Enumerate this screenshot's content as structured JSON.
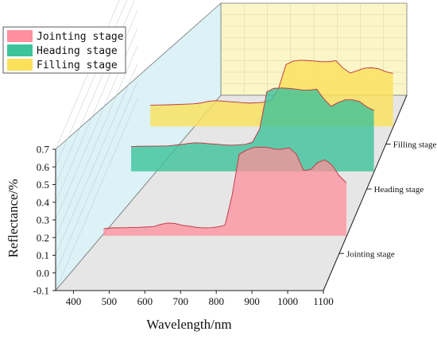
{
  "colors": {
    "jointing": "#ff8f9c",
    "heading": "#3cc39a",
    "filling": "#fbe15a",
    "line": "#c0303f",
    "back_wall": "#fbf6c8",
    "side_wall": "#d6f0f4",
    "floor": "#e6e6e6"
  },
  "chart_data": {
    "type": "area",
    "xlabel": "Wavelength/nm",
    "ylabel": "Reflectance/%",
    "xlim": [
      350,
      1100
    ],
    "ylim": [
      -0.1,
      0.7
    ],
    "x_ticks": [
      "400",
      "500",
      "600",
      "700",
      "800",
      "900",
      "1000",
      "1100"
    ],
    "y_ticks": [
      "-0.1",
      "0.0",
      "0.1",
      "0.2",
      "0.3",
      "0.4",
      "0.5",
      "0.6",
      "0.7"
    ],
    "legend_position": "top-left",
    "series": [
      {
        "name": "Jointing stage",
        "color_key": "jointing",
        "x": [
          440,
          460,
          500,
          540,
          560,
          580,
          600,
          620,
          640,
          660,
          680,
          700,
          720,
          740,
          760,
          780,
          800,
          820,
          840,
          860,
          880,
          900,
          920,
          940,
          960,
          980,
          1000,
          1020,
          1040,
          1060,
          1080,
          1100,
          1120
        ],
        "y": [
          0.04,
          0.045,
          0.046,
          0.048,
          0.05,
          0.052,
          0.065,
          0.072,
          0.07,
          0.06,
          0.055,
          0.048,
          0.045,
          0.046,
          0.051,
          0.06,
          0.23,
          0.462,
          0.485,
          0.5,
          0.502,
          0.5,
          0.49,
          0.49,
          0.498,
          0.462,
          0.37,
          0.375,
          0.415,
          0.43,
          0.4,
          0.34,
          0.3
        ]
      },
      {
        "name": "Heading stage",
        "color_key": "heading",
        "x": [
          440,
          460,
          500,
          540,
          560,
          580,
          600,
          620,
          640,
          660,
          680,
          700,
          720,
          740,
          760,
          780,
          800,
          820,
          840,
          860,
          880,
          900,
          920,
          940,
          960,
          980,
          1000,
          1020,
          1040,
          1060,
          1080,
          1100,
          1120
        ],
        "y": [
          0.14,
          0.142,
          0.143,
          0.144,
          0.148,
          0.152,
          0.158,
          0.162,
          0.16,
          0.156,
          0.154,
          0.15,
          0.148,
          0.15,
          0.153,
          0.165,
          0.24,
          0.45,
          0.47,
          0.472,
          0.47,
          0.466,
          0.46,
          0.46,
          0.465,
          0.41,
          0.368,
          0.39,
          0.405,
          0.405,
          0.395,
          0.365,
          0.345
        ]
      },
      {
        "name": "Filling stage",
        "color_key": "filling",
        "x": [
          440,
          460,
          500,
          540,
          560,
          580,
          600,
          620,
          640,
          660,
          680,
          700,
          720,
          740,
          760,
          780,
          800,
          820,
          840,
          860,
          880,
          900,
          920,
          940,
          960,
          980,
          1000,
          1020,
          1040,
          1060,
          1080,
          1100,
          1120
        ],
        "y": [
          0.12,
          0.121,
          0.123,
          0.126,
          0.128,
          0.132,
          0.141,
          0.146,
          0.144,
          0.14,
          0.138,
          0.134,
          0.132,
          0.134,
          0.138,
          0.15,
          0.22,
          0.35,
          0.37,
          0.375,
          0.373,
          0.37,
          0.366,
          0.366,
          0.372,
          0.33,
          0.302,
          0.316,
          0.33,
          0.332,
          0.326,
          0.31,
          0.3
        ]
      }
    ],
    "category_labels": [
      "Jointing stage",
      "Heading stage",
      "Filling stage"
    ]
  }
}
